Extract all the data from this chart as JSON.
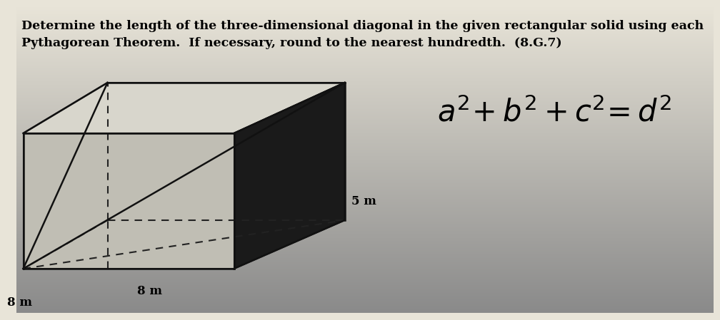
{
  "title_line1": "Determine the length of the three-dimensional diagonal in the given rectangular solid using each",
  "title_line2": "Pythagorean Theorem.  If necessary, round to the nearest hundredth.  (8.G.7)",
  "label_5m": "5 m",
  "label_8m_bottom": "8 m",
  "label_8m_left": "8 m",
  "bg_top": "#e8e4d8",
  "bg_bottom": "#8a8a8a",
  "box_edge_color": "#111111",
  "box_fill_front": "#c0beb4",
  "box_fill_top": "#d8d6cc",
  "box_fill_right": "#1a1a1a",
  "box_fill_left_back": "#9a9890",
  "dashed_color": "#222222",
  "title_fontsize": 12.5,
  "formula_fontsize": 26,
  "label_fontsize": 12
}
